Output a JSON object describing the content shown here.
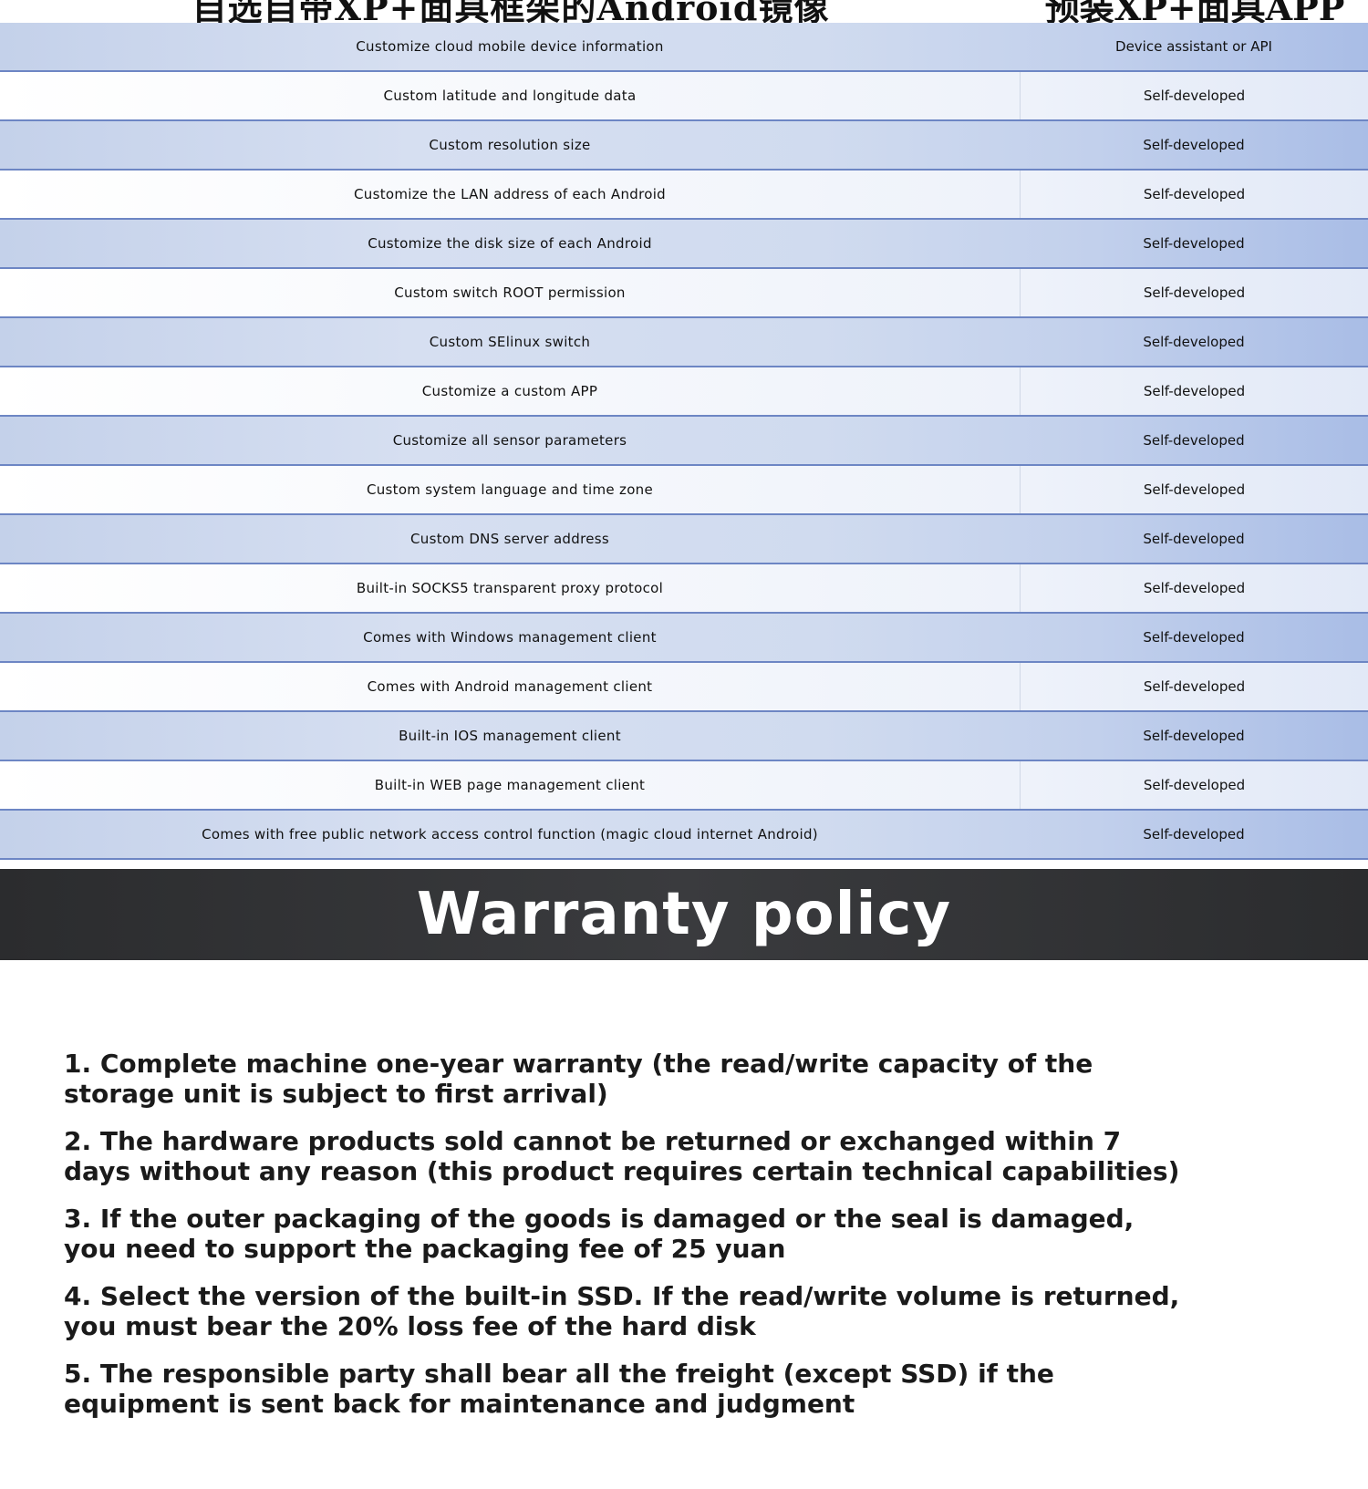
{
  "table": {
    "header": [
      "自选自带XP+面具框架的Android镜像",
      "预装XP+面具APP"
    ],
    "rows": [
      {
        "feature": "Customize cloud mobile device information",
        "value": "Device assistant or API"
      },
      {
        "feature": "Custom latitude and longitude data",
        "value": "Self-developed"
      },
      {
        "feature": "Custom resolution size",
        "value": "Self-developed"
      },
      {
        "feature": "Customize the LAN address of each Android",
        "value": "Self-developed"
      },
      {
        "feature": "Customize the disk size of each Android",
        "value": "Self-developed"
      },
      {
        "feature": "Custom switch ROOT permission",
        "value": "Self-developed"
      },
      {
        "feature": "Custom SElinux switch",
        "value": "Self-developed"
      },
      {
        "feature": "Customize a custom APP",
        "value": "Self-developed"
      },
      {
        "feature": "Customize all sensor parameters",
        "value": "Self-developed"
      },
      {
        "feature": "Custom system language and time zone",
        "value": "Self-developed"
      },
      {
        "feature": "Custom DNS server address",
        "value": "Self-developed"
      },
      {
        "feature": "Built-in SOCKS5 transparent proxy protocol",
        "value": "Self-developed"
      },
      {
        "feature": "Comes with Windows management client",
        "value": "Self-developed"
      },
      {
        "feature": "Comes with Android management client",
        "value": "Self-developed"
      },
      {
        "feature": "Built-in IOS management client",
        "value": "Self-developed"
      },
      {
        "feature": "Built-in WEB page management client",
        "value": "Self-developed"
      },
      {
        "feature": "Comes with free public network access control function (magic cloud internet Android)",
        "value": "Self-developed"
      }
    ]
  },
  "banner": {
    "title": "Warranty policy"
  },
  "policy": [
    "1. Complete machine one-year warranty (the read/write capacity of the storage unit is subject to first arrival)",
    "2. The hardware products sold cannot be returned or exchanged within 7 days without any reason (this product requires certain technical capabilities)",
    "3. If the outer packaging of the goods is damaged or the seal is damaged, you need to support the packaging fee of 25 yuan",
    "4. Select the version of the built-in SSD. If the read/write volume is returned, you must bear the 20% loss fee of the hard disk",
    "5. The responsible party shall bear all the freight (except SSD) if the equipment is sent back for maintenance and judgment"
  ]
}
